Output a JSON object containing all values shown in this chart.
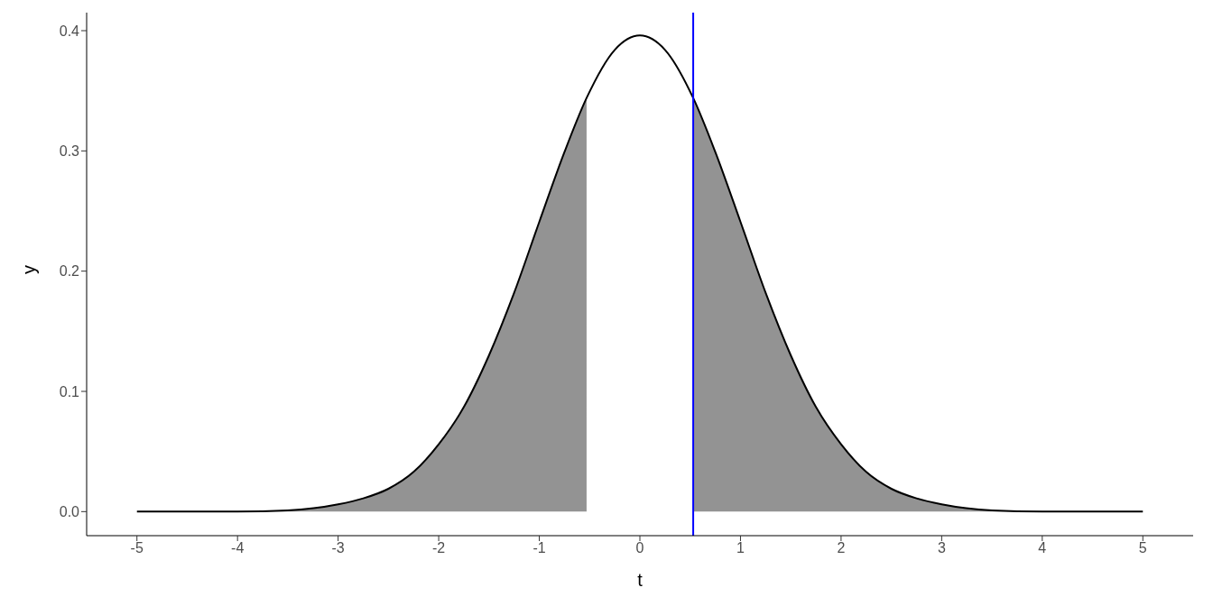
{
  "chart_data": {
    "type": "line",
    "xlabel": "t",
    "ylabel": "y",
    "xlim": [
      -5.5,
      5.5
    ],
    "ylim": [
      -0.02,
      0.415
    ],
    "xticks": [
      -5,
      -4,
      -3,
      -2,
      -1,
      0,
      1,
      2,
      3,
      4,
      5
    ],
    "yticks": [
      {
        "value": 0,
        "label": "0.0"
      },
      {
        "value": 0.1,
        "label": "0.1"
      },
      {
        "value": 0.2,
        "label": "0.2"
      },
      {
        "value": 0.3,
        "label": "0.3"
      },
      {
        "value": 0.4,
        "label": "0.4"
      }
    ],
    "grid": false,
    "series": [
      {
        "type": "area",
        "color": "#939393",
        "x": [
          -5,
          -4.5,
          -4,
          -3.5,
          -3,
          -2.75,
          -2.5,
          -2.25,
          -2,
          -1.75,
          -1.5,
          -1.25,
          -1,
          -0.75,
          -0.53,
          0,
          0.53,
          0.75,
          1,
          1.25,
          1.5,
          1.75,
          2,
          2.25,
          2.5,
          2.75,
          3,
          3.5,
          4,
          4.5,
          5
        ],
        "values": [
          0,
          0,
          0,
          0.001,
          0.006,
          0.011,
          0.019,
          0.033,
          0.056,
          0.087,
          0.13,
          0.182,
          0.241,
          0.299,
          0.344,
          null,
          0.344,
          0.299,
          0.241,
          0.182,
          0.13,
          0.087,
          0.056,
          0.033,
          0.019,
          0.011,
          0.006,
          0.001,
          0,
          0,
          0
        ]
      },
      {
        "color": "#000000",
        "x": [
          -5,
          -4.5,
          -4,
          -3.5,
          -3,
          -2.75,
          -2.5,
          -2.25,
          -2,
          -1.75,
          -1.5,
          -1.25,
          -1,
          -0.75,
          -0.53,
          -0.25,
          0,
          0.25,
          0.53,
          0.75,
          1,
          1.25,
          1.5,
          1.75,
          2,
          2.25,
          2.5,
          2.75,
          3,
          3.5,
          4,
          4.5,
          5
        ],
        "values": [
          0,
          0,
          0,
          0.001,
          0.006,
          0.011,
          0.019,
          0.033,
          0.056,
          0.087,
          0.13,
          0.182,
          0.241,
          0.299,
          0.344,
          0.384,
          0.396,
          0.384,
          0.344,
          0.299,
          0.241,
          0.182,
          0.13,
          0.087,
          0.056,
          0.033,
          0.019,
          0.011,
          0.006,
          0.001,
          0,
          0,
          0
        ]
      }
    ],
    "ref_lines": [
      {
        "axis": "x",
        "value": 0.53,
        "color": "#0000ff"
      }
    ]
  }
}
